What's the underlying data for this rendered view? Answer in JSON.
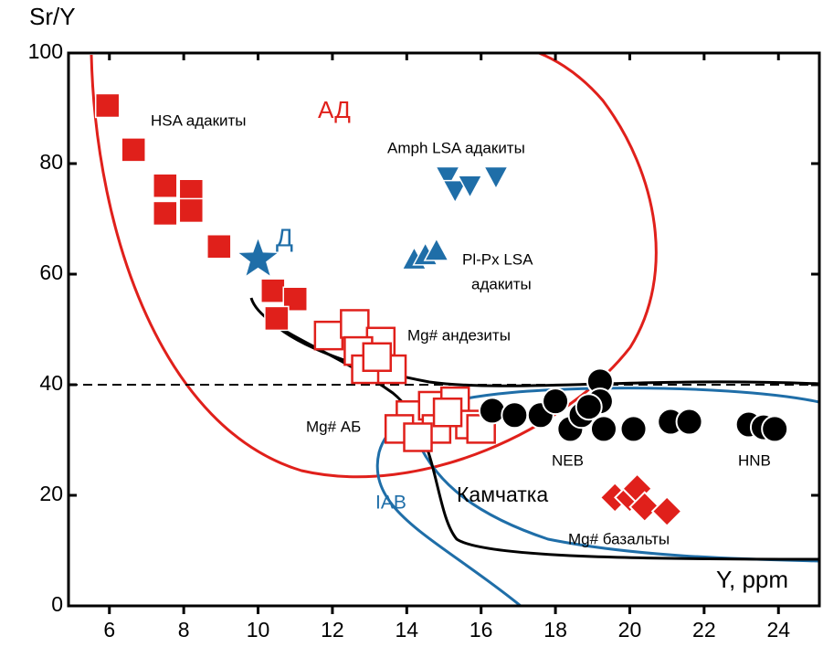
{
  "chart_data": {
    "type": "scatter",
    "y_label": "Sr/Y",
    "x_label": "Y, ppm",
    "xlim": [
      4.9,
      25.1
    ],
    "ylim": [
      0,
      100
    ],
    "xticks": [
      6,
      8,
      10,
      12,
      14,
      16,
      18,
      20,
      22,
      24
    ],
    "yticks": [
      0,
      20,
      40,
      60,
      80,
      100
    ],
    "reference_line": 40,
    "annotations": [
      "HSA адакиты",
      "АД",
      "Amph LSA адакиты",
      "Pl-Px LSA",
      "адакиты",
      "Д",
      "Mg# андезиты",
      "Mg# АБ",
      "NEB",
      "HNB",
      "IAB",
      "Камчатка",
      "Mg# базальты"
    ],
    "series": [
      {
        "marker": "square",
        "color": "#e0201b",
        "x": [
          5.95,
          6.65,
          7.5,
          8.2,
          7.5,
          8.2,
          8.95,
          10.4,
          11.0,
          10.5
        ],
        "values": [
          90.5,
          82.5,
          76,
          75,
          71,
          71.5,
          65,
          57,
          55.5,
          52
        ]
      },
      {
        "marker": "open-square",
        "color": "#e0201b",
        "x": [
          11.9,
          12.6,
          13.3,
          12.7,
          12.9,
          13.6,
          13.2,
          14.1,
          14.7,
          15.3,
          14.8,
          15.7,
          16.0,
          13.8,
          14.3,
          15.1
        ],
        "values": [
          48.9,
          51,
          47.8,
          46.1,
          42.8,
          42.8,
          45,
          34.5,
          36.2,
          37,
          32,
          32.8,
          32,
          32,
          30.5,
          35
        ]
      },
      {
        "marker": "triangle-down",
        "color": "#1f6ea8",
        "x": [
          15.1,
          15.3,
          15.7,
          16.4
        ],
        "values": [
          77.6,
          75.1,
          76,
          77.6
        ]
      },
      {
        "marker": "triangle-up",
        "color": "#1f6ea8",
        "x": [
          14.2,
          14.5,
          14.8
        ],
        "values": [
          62.7,
          63.5,
          64.3
        ]
      },
      {
        "marker": "star",
        "color": "#1f6ea8",
        "x": [
          10.0
        ],
        "values": [
          62.7
        ]
      },
      {
        "marker": "circle",
        "color": "#000000",
        "x": [
          16.3,
          16.9,
          17.6,
          18.0,
          18.4,
          18.7,
          19.2,
          19.2,
          19.3,
          20.1,
          18.9,
          21.1,
          21.6,
          23.2,
          23.6,
          23.9
        ],
        "values": [
          35.3,
          34.5,
          34.5,
          37,
          32,
          34.5,
          40.6,
          37,
          32,
          32,
          36,
          33.3,
          33.3,
          32.8,
          32.3,
          32
        ]
      },
      {
        "marker": "diamond",
        "color": "#e0201b",
        "x": [
          19.6,
          20.0,
          20.2,
          20.4,
          21.0
        ],
        "values": [
          19.6,
          19.6,
          21.2,
          17.9,
          17.1
        ]
      }
    ]
  }
}
